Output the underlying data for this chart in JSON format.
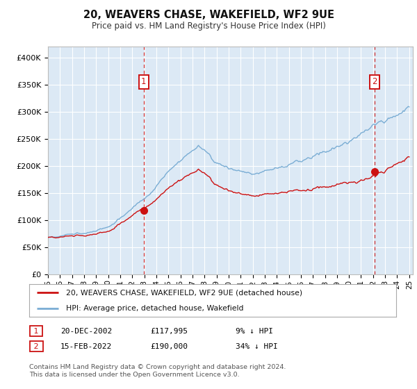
{
  "title": "20, WEAVERS CHASE, WAKEFIELD, WF2 9UE",
  "subtitle": "Price paid vs. HM Land Registry's House Price Index (HPI)",
  "background_color": "#dce9f5",
  "plot_bg_color": "#dce9f5",
  "fig_bg_color": "#ffffff",
  "ylim": [
    0,
    420000
  ],
  "yticks": [
    0,
    50000,
    100000,
    150000,
    200000,
    250000,
    300000,
    350000,
    400000
  ],
  "ytick_labels": [
    "£0",
    "£50K",
    "£100K",
    "£150K",
    "£200K",
    "£250K",
    "£300K",
    "£350K",
    "£400K"
  ],
  "x_start_year": 1995,
  "x_end_year": 2025,
  "sale1_year": 2002.96,
  "sale1_price": 117995,
  "sale1_label": "1",
  "sale1_date": "20-DEC-2002",
  "sale1_pct": "9% ↓ HPI",
  "sale2_year": 2022.12,
  "sale2_price": 190000,
  "sale2_label": "2",
  "sale2_date": "15-FEB-2022",
  "sale2_pct": "34% ↓ HPI",
  "hpi_color": "#7aadd4",
  "price_color": "#cc1111",
  "dashed_color": "#cc1111",
  "legend_label_price": "20, WEAVERS CHASE, WAKEFIELD, WF2 9UE (detached house)",
  "legend_label_hpi": "HPI: Average price, detached house, Wakefield",
  "footer": "Contains HM Land Registry data © Crown copyright and database right 2024.\nThis data is licensed under the Open Government Licence v3.0.",
  "marker_box_color": "#cc1111"
}
